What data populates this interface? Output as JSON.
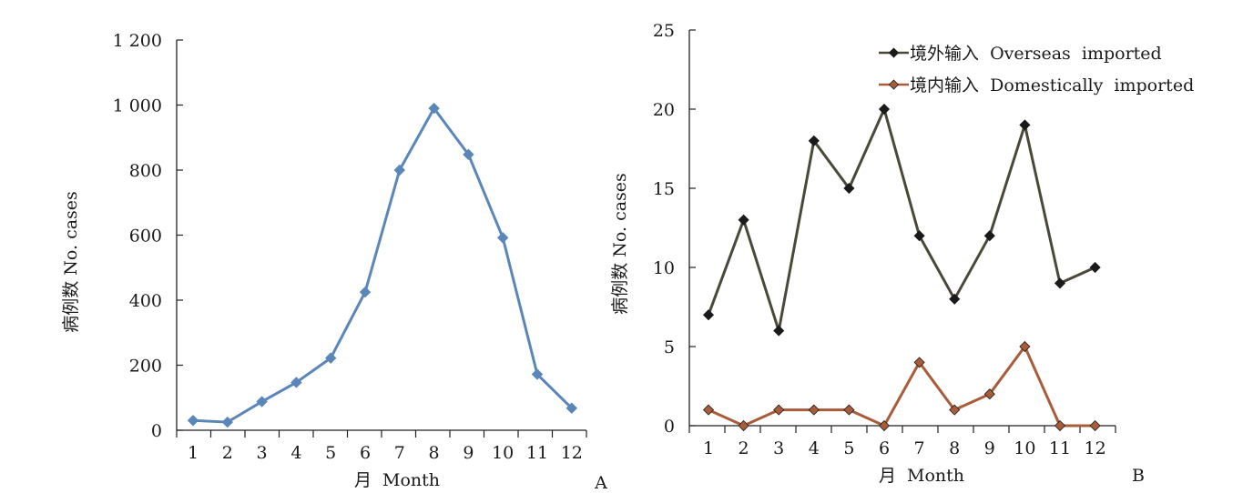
{
  "chart_data": [
    {
      "panel": "A",
      "type": "line",
      "categories": [
        "1",
        "2",
        "3",
        "4",
        "5",
        "6",
        "7",
        "8",
        "9",
        "10",
        "11",
        "12"
      ],
      "series": [
        {
          "values": [
            30,
            25,
            88,
            147,
            222,
            425,
            800,
            990,
            848,
            592,
            172,
            68
          ],
          "color": "#5a86ba"
        }
      ],
      "xlabel": "月  Month",
      "ylabel": "病例数  No.  cases",
      "ylim": [
        0,
        1200
      ],
      "yticks": [
        0,
        200,
        400,
        600,
        800,
        1000,
        1200
      ],
      "ytick_labels": [
        "0",
        "200",
        "400",
        "600",
        "800",
        "1 000",
        "1 200"
      ],
      "grid": false
    },
    {
      "panel": "B",
      "type": "line",
      "categories": [
        "1",
        "2",
        "3",
        "4",
        "5",
        "6",
        "7",
        "8",
        "9",
        "10",
        "11",
        "12"
      ],
      "series": [
        {
          "name": "境外输入  Overseas  imported",
          "values": [
            7,
            13,
            6,
            18,
            15,
            20,
            12,
            8,
            12,
            19,
            9,
            10
          ],
          "color": "#4a4838"
        },
        {
          "name": "境内输入  Domestically  imported",
          "values": [
            1,
            0,
            1,
            1,
            1,
            0,
            4,
            1,
            2,
            5,
            0,
            0
          ],
          "color": "#a95c3a"
        }
      ],
      "xlabel": "月  Month",
      "ylabel": "病例数  No.  cases",
      "ylim": [
        0,
        25
      ],
      "yticks": [
        0,
        5,
        10,
        15,
        20,
        25
      ],
      "ytick_labels": [
        "0",
        "5",
        "10",
        "15",
        "20",
        "25"
      ],
      "legend": "top-right",
      "grid": false
    }
  ]
}
